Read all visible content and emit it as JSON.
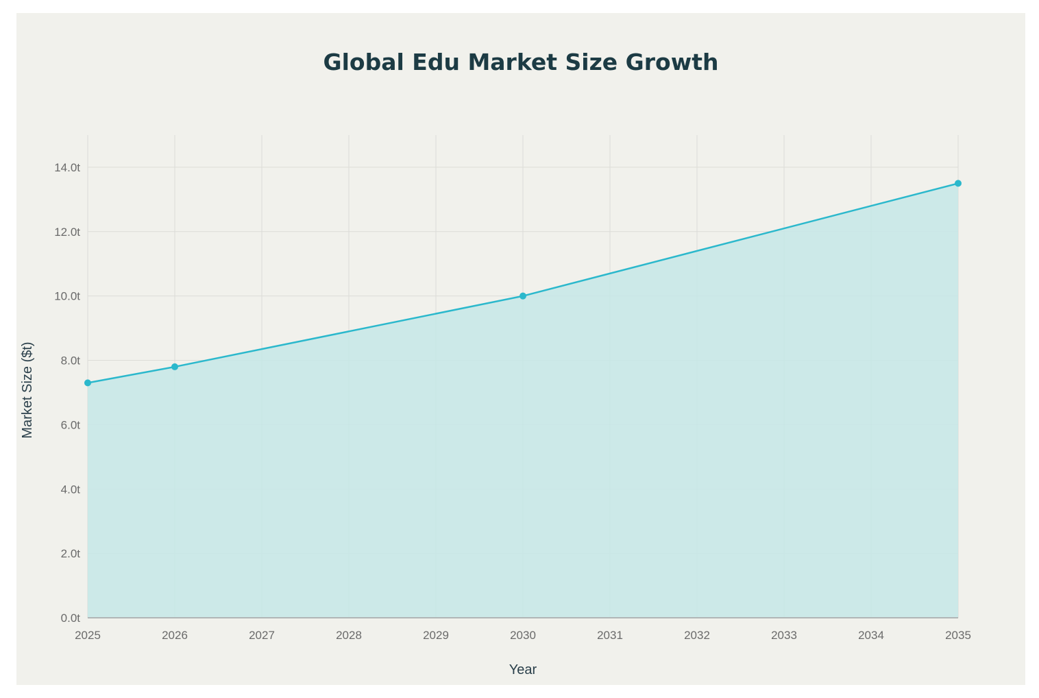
{
  "chart_data": {
    "type": "area",
    "title": "Global Edu Market Size Growth",
    "xlabel": "Year",
    "ylabel": "Market Size ($t)",
    "x_ticks": [
      "2025",
      "2026",
      "2027",
      "2028",
      "2029",
      "2030",
      "2031",
      "2032",
      "2033",
      "2034",
      "2035"
    ],
    "y_ticks": [
      "0.0t",
      "2.0t",
      "4.0t",
      "6.0t",
      "8.0t",
      "10.0t",
      "12.0t",
      "14.0t"
    ],
    "xlim": [
      2025,
      2035
    ],
    "ylim": [
      0,
      15
    ],
    "grid": true,
    "series": [
      {
        "points": [
          {
            "x": 2025,
            "y": 7.3
          },
          {
            "x": 2026,
            "y": 7.8
          },
          {
            "x": 2030,
            "y": 10.0
          },
          {
            "x": 2035,
            "y": 13.5
          }
        ],
        "line_color": "#2bb8cc",
        "fill_color": "#c6e7e8"
      }
    ]
  }
}
